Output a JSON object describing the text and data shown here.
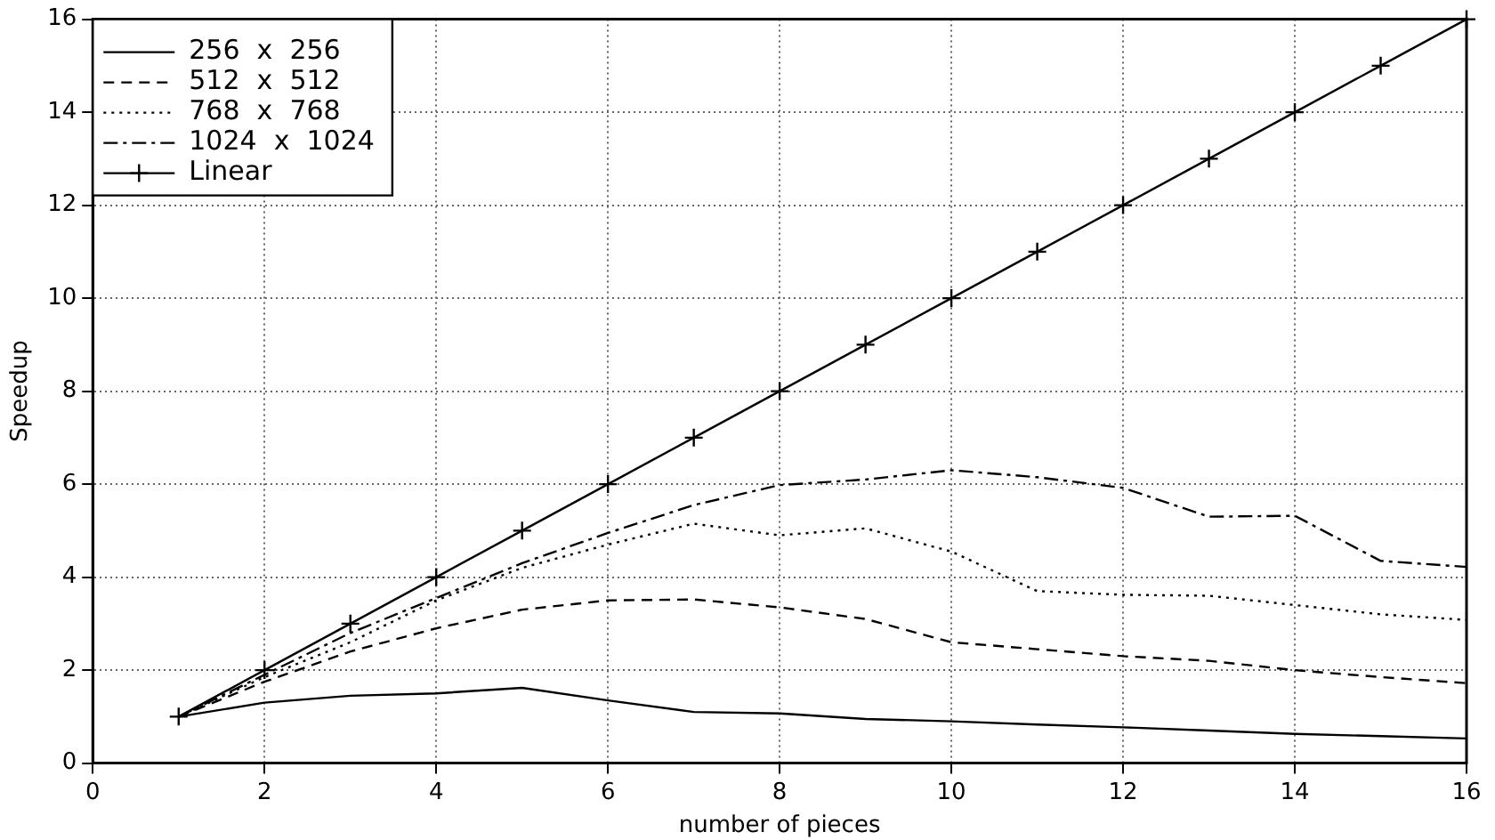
{
  "chart_data": {
    "type": "line",
    "xlabel": "number of pieces",
    "ylabel": "Speedup",
    "x": [
      1,
      2,
      3,
      4,
      5,
      6,
      7,
      8,
      9,
      10,
      11,
      12,
      13,
      14,
      15,
      16
    ],
    "series": [
      {
        "name": "256  x  256",
        "color": "#000000",
        "line_style": "solid",
        "marker": "none",
        "values": [
          1,
          1.3,
          1.45,
          1.5,
          1.62,
          1.35,
          1.1,
          1.07,
          0.95,
          0.9,
          0.83,
          0.77,
          0.7,
          0.63,
          0.58,
          0.53
        ]
      },
      {
        "name": "512  x  512",
        "color": "#000000",
        "line_style": "dashed",
        "marker": "none",
        "values": [
          1,
          1.75,
          2.4,
          2.9,
          3.3,
          3.5,
          3.52,
          3.35,
          3.1,
          2.6,
          2.45,
          2.3,
          2.2,
          2.0,
          1.85,
          1.72
        ]
      },
      {
        "name": "768  x  768",
        "color": "#000000",
        "line_style": "dotted",
        "marker": "none",
        "values": [
          1,
          1.85,
          2.6,
          3.5,
          4.2,
          4.7,
          5.15,
          4.9,
          5.05,
          4.55,
          3.7,
          3.62,
          3.6,
          3.4,
          3.2,
          3.08
        ]
      },
      {
        "name": "1024  x  1024",
        "color": "#000000",
        "line_style": "dashdot",
        "marker": "none",
        "values": [
          1,
          1.9,
          2.8,
          3.55,
          4.3,
          4.95,
          5.55,
          5.98,
          6.1,
          6.3,
          6.15,
          5.92,
          5.3,
          5.32,
          4.35,
          4.22
        ]
      },
      {
        "name": "Linear",
        "color": "#000000",
        "line_style": "solid",
        "marker": "cross",
        "values": [
          1,
          2,
          3,
          4,
          5,
          6,
          7,
          8,
          9,
          10,
          11,
          12,
          13,
          14,
          15,
          16
        ]
      }
    ],
    "xlim": [
      0,
      16
    ],
    "xticks": [
      0,
      2,
      4,
      6,
      8,
      10,
      12,
      14,
      16
    ],
    "ylim": [
      0,
      16
    ],
    "yticks": [
      0,
      2,
      4,
      6,
      8,
      10,
      12,
      14,
      16
    ],
    "grid": true,
    "legend": "top left"
  }
}
